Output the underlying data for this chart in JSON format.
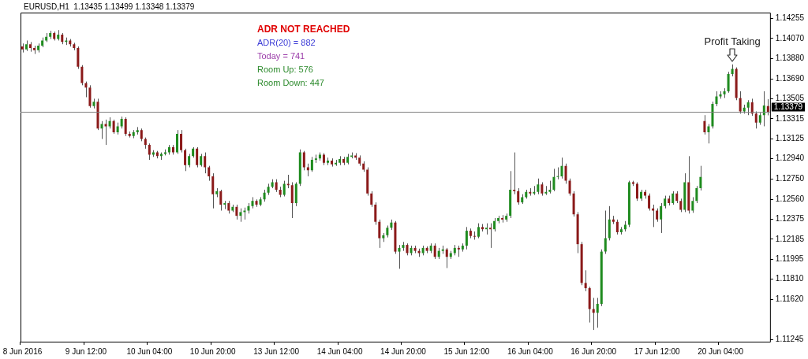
{
  "chart_data": {
    "type": "candlestick",
    "title": "EURUSD,H1  1.13435 1.13499 1.13348 1.13379",
    "categories": [
      "8 Jun 2016",
      null,
      null,
      null,
      null,
      null,
      null,
      null,
      null,
      null,
      null,
      null,
      null,
      null,
      null,
      null,
      "9 Jun 12:00",
      null,
      null,
      null,
      null,
      null,
      null,
      null,
      null,
      null,
      null,
      null,
      null,
      null,
      null,
      null,
      "10 Jun 04:00",
      null,
      null,
      null,
      null,
      null,
      null,
      null,
      null,
      null,
      null,
      null,
      null,
      null,
      null,
      null,
      "10 Jun 20:00",
      null,
      null,
      null,
      null,
      null,
      null,
      null,
      null,
      null,
      null,
      null,
      null,
      null,
      null,
      null,
      "13 Jun 12:00",
      null,
      null,
      null,
      null,
      null,
      null,
      null,
      null,
      null,
      null,
      null,
      null,
      null,
      null,
      null,
      "14 Jun 04:00",
      null,
      null,
      null,
      null,
      null,
      null,
      null,
      null,
      null,
      null,
      null,
      null,
      null,
      null,
      null,
      "14 Jun 20:00",
      null,
      null,
      null,
      null,
      null,
      null,
      null,
      null,
      null,
      null,
      null,
      null,
      null,
      null,
      null,
      "15 Jun 12:00",
      null,
      null,
      null,
      null,
      null,
      null,
      null,
      null,
      null,
      null,
      null,
      null,
      null,
      null,
      null,
      "16 Jun 04:00",
      null,
      null,
      null,
      null,
      null,
      null,
      null,
      null,
      null,
      null,
      null,
      null,
      null,
      null,
      null,
      "16 Jun 20:00",
      null,
      null,
      null,
      null,
      null,
      null,
      null,
      null,
      null,
      null,
      null,
      null,
      null,
      null,
      null,
      "17 Jun 12:00",
      null,
      null,
      null,
      null,
      null,
      null,
      null,
      null,
      null,
      null,
      null,
      null,
      null,
      null,
      null,
      "20 Jun 04:00",
      null,
      null,
      null,
      null,
      null,
      null,
      null,
      null,
      null,
      null,
      null,
      null
    ],
    "ohlc": [
      [
        1.13994,
        1.14022,
        1.13938,
        1.13966
      ],
      [
        1.13966,
        1.1405,
        1.13952,
        1.14015
      ],
      [
        1.14015,
        1.14036,
        1.13945,
        1.1398
      ],
      [
        1.1398,
        1.14001,
        1.13924,
        1.13959
      ],
      [
        1.13959,
        1.14022,
        1.13938,
        1.14001
      ],
      [
        1.14001,
        1.14078,
        1.13987,
        1.1405
      ],
      [
        1.1405,
        1.1412,
        1.14036,
        1.14085
      ],
      [
        1.14085,
        1.14141,
        1.14064,
        1.1412
      ],
      [
        1.1412,
        1.14134,
        1.1405,
        1.14064
      ],
      [
        1.14064,
        1.14148,
        1.1405,
        1.14106
      ],
      [
        1.14106,
        1.1412,
        1.14015,
        1.14036
      ],
      [
        1.14036,
        1.14078,
        1.14008,
        1.1405
      ],
      [
        1.1405,
        1.14064,
        1.13994,
        1.14015
      ],
      [
        1.14015,
        1.14029,
        1.13959,
        1.1398
      ],
      [
        1.1398,
        1.13994,
        1.13784,
        1.13805
      ],
      [
        1.13805,
        1.13819,
        1.1363,
        1.13651
      ],
      [
        1.13651,
        1.13665,
        1.13518,
        1.13609
      ],
      [
        1.13609,
        1.1363,
        1.1342,
        1.13434
      ],
      [
        1.13434,
        1.13504,
        1.13413,
        1.13476
      ],
      [
        1.13476,
        1.13504,
        1.1321,
        1.13224
      ],
      [
        1.13224,
        1.13294,
        1.13126,
        1.13266
      ],
      [
        1.13266,
        1.13308,
        1.1307,
        1.13245
      ],
      [
        1.13245,
        1.13329,
        1.13224,
        1.13294
      ],
      [
        1.13294,
        1.13308,
        1.13175,
        1.13189
      ],
      [
        1.13189,
        1.1328,
        1.13168,
        1.13245
      ],
      [
        1.13245,
        1.13336,
        1.13224,
        1.13315
      ],
      [
        1.13315,
        1.13329,
        1.13154,
        1.13175
      ],
      [
        1.13175,
        1.13196,
        1.1314,
        1.13154
      ],
      [
        1.13154,
        1.1321,
        1.13133,
        1.13189
      ],
      [
        1.13189,
        1.13238,
        1.13168,
        1.1321
      ],
      [
        1.1321,
        1.13224,
        1.13105,
        1.13126
      ],
      [
        1.13126,
        1.1314,
        1.13035,
        1.1307
      ],
      [
        1.1307,
        1.13084,
        1.1293,
        1.12979
      ],
      [
        1.12979,
        1.13021,
        1.12958,
        1.13
      ],
      [
        1.13,
        1.13014,
        1.12944,
        1.12965
      ],
      [
        1.12965,
        1.13,
        1.1293,
        1.12986
      ],
      [
        1.12986,
        1.13028,
        1.12972,
        1.13
      ],
      [
        1.13,
        1.1307,
        1.12979,
        1.13049
      ],
      [
        1.13049,
        1.1307,
        1.12979,
        1.13
      ],
      [
        1.13,
        1.1321,
        1.12986,
        1.13175
      ],
      [
        1.13175,
        1.1321,
        1.13,
        1.13021
      ],
      [
        1.13021,
        1.13035,
        1.12825,
        1.12881
      ],
      [
        1.12881,
        1.12986,
        1.1286,
        1.12965
      ],
      [
        1.12965,
        1.13049,
        1.12951,
        1.13035
      ],
      [
        1.13035,
        1.13049,
        1.1286,
        1.12881
      ],
      [
        1.12881,
        1.12986,
        1.12867,
        1.12965
      ],
      [
        1.12965,
        1.13,
        1.12804,
        1.1286
      ],
      [
        1.1286,
        1.12874,
        1.12734,
        1.12776
      ],
      [
        1.12776,
        1.12804,
        1.12475,
        1.12608
      ],
      [
        1.12608,
        1.12664,
        1.1258,
        1.12636
      ],
      [
        1.12636,
        1.1265,
        1.12454,
        1.1251
      ],
      [
        1.1251,
        1.12545,
        1.12468,
        1.12524
      ],
      [
        1.12524,
        1.12545,
        1.12426,
        1.12454
      ],
      [
        1.12454,
        1.1251,
        1.1244,
        1.12489
      ],
      [
        1.12489,
        1.1251,
        1.1237,
        1.12405
      ],
      [
        1.12405,
        1.12475,
        1.12349,
        1.1244
      ],
      [
        1.1244,
        1.12482,
        1.1237,
        1.12454
      ],
      [
        1.12454,
        1.12524,
        1.12426,
        1.12496
      ],
      [
        1.12496,
        1.1258,
        1.12475,
        1.12545
      ],
      [
        1.12545,
        1.12559,
        1.12489,
        1.1251
      ],
      [
        1.1251,
        1.1258,
        1.12496,
        1.12559
      ],
      [
        1.12559,
        1.1265,
        1.12538,
        1.12622
      ],
      [
        1.12622,
        1.12706,
        1.12601,
        1.12678
      ],
      [
        1.12678,
        1.12748,
        1.12664,
        1.1272
      ],
      [
        1.1272,
        1.12748,
        1.12629,
        1.1265
      ],
      [
        1.1265,
        1.12678,
        1.1258,
        1.12601
      ],
      [
        1.12601,
        1.12734,
        1.12587,
        1.12706
      ],
      [
        1.12706,
        1.1279,
        1.12664,
        1.12692
      ],
      [
        1.12692,
        1.1272,
        1.12384,
        1.12524
      ],
      [
        1.12524,
        1.1272,
        1.12496,
        1.12706
      ],
      [
        1.12706,
        1.13028,
        1.12685,
        1.13
      ],
      [
        1.13,
        1.13014,
        1.12832,
        1.1286
      ],
      [
        1.1286,
        1.12895,
        1.12776,
        1.12832
      ],
      [
        1.12832,
        1.12958,
        1.12818,
        1.1293
      ],
      [
        1.1293,
        1.12979,
        1.12902,
        1.12944
      ],
      [
        1.12944,
        1.13,
        1.12923,
        1.12979
      ],
      [
        1.12979,
        1.12993,
        1.12881,
        1.12902
      ],
      [
        1.12902,
        1.12951,
        1.12881,
        1.12923
      ],
      [
        1.12923,
        1.12944,
        1.12867,
        1.12888
      ],
      [
        1.12888,
        1.1293,
        1.12874,
        1.12902
      ],
      [
        1.12902,
        1.12965,
        1.12881,
        1.12937
      ],
      [
        1.12937,
        1.12958,
        1.12881,
        1.12902
      ],
      [
        1.12902,
        1.12986,
        1.12888,
        1.12958
      ],
      [
        1.12958,
        1.13,
        1.12944,
        1.12972
      ],
      [
        1.12972,
        1.12993,
        1.1293,
        1.12951
      ],
      [
        1.12951,
        1.12972,
        1.12874,
        1.12895
      ],
      [
        1.12895,
        1.12916,
        1.12818,
        1.12839
      ],
      [
        1.12839,
        1.1286,
        1.12594,
        1.12615
      ],
      [
        1.12615,
        1.12636,
        1.12489,
        1.1251
      ],
      [
        1.1251,
        1.12531,
        1.12321,
        1.12349
      ],
      [
        1.12349,
        1.1237,
        1.12104,
        1.12195
      ],
      [
        1.12195,
        1.12244,
        1.1216,
        1.12223
      ],
      [
        1.12223,
        1.12314,
        1.12202,
        1.12293
      ],
      [
        1.12293,
        1.1237,
        1.12272,
        1.12342
      ],
      [
        1.12342,
        1.12356,
        1.12048,
        1.12069
      ],
      [
        1.12069,
        1.12132,
        1.11908,
        1.12104
      ],
      [
        1.12104,
        1.1216,
        1.12076,
        1.12132
      ],
      [
        1.12132,
        1.12146,
        1.12034,
        1.12055
      ],
      [
        1.12055,
        1.12125,
        1.12034,
        1.12104
      ],
      [
        1.12104,
        1.12125,
        1.12055,
        1.12076
      ],
      [
        1.12076,
        1.12097,
        1.1202,
        1.12055
      ],
      [
        1.12055,
        1.12125,
        1.12034,
        1.12104
      ],
      [
        1.12104,
        1.12118,
        1.12055,
        1.12076
      ],
      [
        1.12076,
        1.12146,
        1.12055,
        1.12125
      ],
      [
        1.12125,
        1.12146,
        1.12,
        1.1202
      ],
      [
        1.1202,
        1.12104,
        1.12,
        1.12076
      ],
      [
        1.12076,
        1.12125,
        1.12048,
        1.1209
      ],
      [
        1.1209,
        1.12104,
        1.11915,
        1.1202
      ],
      [
        1.1202,
        1.12076,
        1.12,
        1.12055
      ],
      [
        1.12055,
        1.12132,
        1.12034,
        1.12104
      ],
      [
        1.12104,
        1.12125,
        1.1202,
        1.1209
      ],
      [
        1.1209,
        1.12146,
        1.12069,
        1.12125
      ],
      [
        1.12125,
        1.123,
        1.1209,
        1.12265
      ],
      [
        1.12265,
        1.12286,
        1.12195,
        1.12216
      ],
      [
        1.12216,
        1.12258,
        1.12181,
        1.12209
      ],
      [
        1.12209,
        1.12335,
        1.12195,
        1.123
      ],
      [
        1.123,
        1.12328,
        1.12258,
        1.12279
      ],
      [
        1.12279,
        1.12335,
        1.1223,
        1.12293
      ],
      [
        1.12293,
        1.12335,
        1.12104,
        1.12279
      ],
      [
        1.12279,
        1.12384,
        1.12258,
        1.12356
      ],
      [
        1.12356,
        1.12405,
        1.12335,
        1.12384
      ],
      [
        1.12384,
        1.12412,
        1.12342,
        1.1237
      ],
      [
        1.1237,
        1.12426,
        1.12349,
        1.12405
      ],
      [
        1.12405,
        1.12825,
        1.12384,
        1.1265
      ],
      [
        1.1265,
        1.13,
        1.12608,
        1.12636
      ],
      [
        1.12636,
        1.12664,
        1.1251,
        1.12531
      ],
      [
        1.12531,
        1.12608,
        1.12517,
        1.1258
      ],
      [
        1.1258,
        1.1265,
        1.12566,
        1.12629
      ],
      [
        1.12629,
        1.12664,
        1.12594,
        1.12615
      ],
      [
        1.12615,
        1.12685,
        1.12601,
        1.12629
      ],
      [
        1.12629,
        1.12755,
        1.12608,
        1.12699
      ],
      [
        1.12699,
        1.1272,
        1.12594,
        1.12615
      ],
      [
        1.12615,
        1.12685,
        1.12601,
        1.12629
      ],
      [
        1.12629,
        1.12734,
        1.12615,
        1.1265
      ],
      [
        1.1265,
        1.12846,
        1.12636,
        1.12769
      ],
      [
        1.12769,
        1.1286,
        1.12748,
        1.12776
      ],
      [
        1.12776,
        1.12951,
        1.12755,
        1.12874
      ],
      [
        1.12874,
        1.12895,
        1.12706,
        1.12734
      ],
      [
        1.12734,
        1.12755,
        1.12594,
        1.12615
      ],
      [
        1.12615,
        1.12636,
        1.12398,
        1.12419
      ],
      [
        1.12419,
        1.1244,
        1.12055,
        1.12139
      ],
      [
        1.12139,
        1.1216,
        1.11754,
        1.11775
      ],
      [
        1.11775,
        1.11894,
        1.11698,
        1.11726
      ],
      [
        1.11726,
        1.1174,
        1.11404,
        1.1153
      ],
      [
        1.1153,
        1.11635,
        1.11334,
        1.11495
      ],
      [
        1.11495,
        1.11635,
        1.11355,
        1.11579
      ],
      [
        1.11579,
        1.1209,
        1.11558,
        1.12069
      ],
      [
        1.12069,
        1.12454,
        1.12048,
        1.12195
      ],
      [
        1.12195,
        1.12496,
        1.12174,
        1.1237
      ],
      [
        1.1237,
        1.12405,
        1.12328,
        1.12349
      ],
      [
        1.12349,
        1.1237,
        1.1223,
        1.12251
      ],
      [
        1.12251,
        1.123,
        1.1223,
        1.12279
      ],
      [
        1.12279,
        1.12356,
        1.12258,
        1.12321
      ],
      [
        1.12321,
        1.12734,
        1.123,
        1.1272
      ],
      [
        1.1272,
        1.12734,
        1.12685,
        1.12706
      ],
      [
        1.12706,
        1.1272,
        1.12545,
        1.12566
      ],
      [
        1.12566,
        1.1265,
        1.12545,
        1.12629
      ],
      [
        1.12629,
        1.1265,
        1.12566,
        1.12594
      ],
      [
        1.12594,
        1.12615,
        1.12454,
        1.12475
      ],
      [
        1.12475,
        1.1251,
        1.123,
        1.12454
      ],
      [
        1.12454,
        1.12475,
        1.12349,
        1.1237
      ],
      [
        1.1237,
        1.12524,
        1.12244,
        1.12496
      ],
      [
        1.12496,
        1.12594,
        1.12475,
        1.12566
      ],
      [
        1.12566,
        1.12594,
        1.12503,
        1.12524
      ],
      [
        1.12524,
        1.12636,
        1.1251,
        1.12615
      ],
      [
        1.12615,
        1.12636,
        1.12524,
        1.12545
      ],
      [
        1.12545,
        1.12566,
        1.1244,
        1.12461
      ],
      [
        1.12461,
        1.12804,
        1.1244,
        1.1272
      ],
      [
        1.1272,
        1.12965,
        1.12426,
        1.12454
      ],
      [
        1.12454,
        1.1258,
        1.12433,
        1.12545
      ],
      [
        1.12545,
        1.12685,
        1.12524,
        1.12664
      ],
      [
        1.12664,
        1.12874,
        1.12643,
        1.12769
      ],
      [
        1.13294,
        1.1335,
        1.13168,
        1.13189
      ],
      [
        1.13189,
        1.13266,
        1.13084,
        1.13245
      ],
      [
        1.13245,
        1.13476,
        1.13224,
        1.13455
      ],
      [
        1.13455,
        1.13574,
        1.13434,
        1.13525
      ],
      [
        1.13525,
        1.13574,
        1.13504,
        1.13546
      ],
      [
        1.13546,
        1.13602,
        1.13511,
        1.13574
      ],
      [
        1.13574,
        1.13756,
        1.1356,
        1.13735
      ],
      [
        1.13735,
        1.13826,
        1.13714,
        1.13784
      ],
      [
        1.13784,
        1.13798,
        1.1349,
        1.13511
      ],
      [
        1.13511,
        1.13574,
        1.13364,
        1.13385
      ],
      [
        1.13385,
        1.13448,
        1.13364,
        1.1342
      ],
      [
        1.1342,
        1.1349,
        1.1335,
        1.13469
      ],
      [
        1.13469,
        1.13504,
        1.13343,
        1.13364
      ],
      [
        1.13364,
        1.13385,
        1.13224,
        1.1328
      ],
      [
        1.1328,
        1.13371,
        1.13259,
        1.1335
      ],
      [
        1.1335,
        1.13574,
        1.13245,
        1.13441
      ],
      [
        1.13435,
        1.13499,
        1.13348,
        1.13379
      ]
    ],
    "colors": [
      "#8b1a1a",
      "#1f8b1f",
      "#8b1a1a",
      "#8b1a1a",
      "#1f8b1f",
      "#1f8b1f",
      "#1f8b1f",
      "#1f8b1f",
      "#8b1a1a",
      "#1f8b1f",
      "#8b1a1a",
      "#1f8b1f",
      "#8b1a1a",
      "#8b1a1a",
      "#8b1a1a",
      "#8b1a1a",
      "#8b1a1a",
      "#8b1a1a",
      "#1f8b1f",
      "#8b1a1a",
      "#1f8b1f",
      "#8b1a1a",
      "#1f8b1f",
      "#8b1a1a",
      "#1f8b1f",
      "#1f8b1f",
      "#8b1a1a",
      "#8b1a1a",
      "#1f8b1f",
      "#1f8b1f",
      "#8b1a1a",
      "#8b1a1a",
      "#8b1a1a",
      "#1f8b1f",
      "#8b1a1a",
      "#1f8b1f",
      "#1f8b1f",
      "#1f8b1f",
      "#8b1a1a",
      "#1f8b1f",
      "#8b1a1a",
      "#8b1a1a",
      "#1f8b1f",
      "#1f8b1f",
      "#8b1a1a",
      "#1f8b1f",
      "#8b1a1a",
      "#8b1a1a",
      "#8b1a1a",
      "#1f8b1f",
      "#8b1a1a",
      "#1f8b1f",
      "#8b1a1a",
      "#1f8b1f",
      "#8b1a1a",
      "#1f8b1f",
      "#1f8b1f",
      "#1f8b1f",
      "#1f8b1f",
      "#8b1a1a",
      "#1f8b1f",
      "#1f8b1f",
      "#1f8b1f",
      "#1f8b1f",
      "#8b1a1a",
      "#8b1a1a",
      "#1f8b1f",
      "#8b1a1a",
      "#8b1a1a",
      "#1f8b1f",
      "#1f8b1f",
      "#8b1a1a",
      "#8b1a1a",
      "#1f8b1f",
      "#1f8b1f",
      "#1f8b1f",
      "#8b1a1a",
      "#1f8b1f",
      "#8b1a1a",
      "#1f8b1f",
      "#1f8b1f",
      "#8b1a1a",
      "#1f8b1f",
      "#1f8b1f",
      "#8b1a1a",
      "#8b1a1a",
      "#8b1a1a",
      "#8b1a1a",
      "#8b1a1a",
      "#8b1a1a",
      "#8b1a1a",
      "#1f8b1f",
      "#1f8b1f",
      "#1f8b1f",
      "#8b1a1a",
      "#1f8b1f",
      "#1f8b1f",
      "#8b1a1a",
      "#1f8b1f",
      "#8b1a1a",
      "#8b1a1a",
      "#1f8b1f",
      "#8b1a1a",
      "#1f8b1f",
      "#8b1a1a",
      "#1f8b1f",
      "#1f8b1f",
      "#8b1a1a",
      "#1f8b1f",
      "#1f8b1f",
      "#8b1a1a",
      "#1f8b1f",
      "#1f8b1f",
      "#8b1a1a",
      "#8b1a1a",
      "#1f8b1f",
      "#8b1a1a",
      "#1f8b1f",
      "#8b1a1a",
      "#1f8b1f",
      "#1f8b1f",
      "#8b1a1a",
      "#1f8b1f",
      "#1f8b1f",
      "#8b1a1a",
      "#8b1a1a",
      "#1f8b1f",
      "#1f8b1f",
      "#8b1a1a",
      "#1f8b1f",
      "#1f8b1f",
      "#8b1a1a",
      "#1f8b1f",
      "#1f8b1f",
      "#1f8b1f",
      "#1f8b1f",
      "#1f8b1f",
      "#8b1a1a",
      "#8b1a1a",
      "#8b1a1a",
      "#8b1a1a",
      "#8b1a1a",
      "#8b1a1a",
      "#8b1a1a",
      "#8b1a1a",
      "#1f8b1f",
      "#1f8b1f",
      "#1f8b1f",
      "#1f8b1f",
      "#8b1a1a",
      "#8b1a1a",
      "#1f8b1f",
      "#1f8b1f",
      "#1f8b1f",
      "#8b1a1a",
      "#8b1a1a",
      "#1f8b1f",
      "#8b1a1a",
      "#8b1a1a",
      "#8b1a1a",
      "#8b1a1a",
      "#1f8b1f",
      "#1f8b1f",
      "#8b1a1a",
      "#1f8b1f",
      "#8b1a1a",
      "#8b1a1a",
      "#1f8b1f",
      "#8b1a1a",
      "#1f8b1f",
      "#1f8b1f",
      "#1f8b1f",
      "#8b1a1a",
      "#1f8b1f",
      "#1f8b1f",
      "#1f8b1f",
      "#1f8b1f",
      "#1f8b1f",
      "#1f8b1f",
      "#1f8b1f",
      "#8b1a1a",
      "#8b1a1a",
      "#1f8b1f",
      "#1f8b1f",
      "#8b1a1a",
      "#8b1a1a",
      "#1f8b1f",
      "#1f8b1f",
      "#8b1a1a"
    ],
    "ylim": [
      1.11224,
      1.14312
    ],
    "yticks": [
      1.14255,
      {
        "value": 1.1407,
        "label": "1.14070"
      },
      {
        "value": 1.1388,
        "label": "1.13880"
      },
      {
        "value": 1.1369,
        "label": "1.13690"
      },
      1.13505,
      1.13315,
      1.13125,
      {
        "value": 1.1294,
        "label": "1.12940"
      },
      {
        "value": 1.1275,
        "label": "1.12750"
      },
      {
        "value": 1.1256,
        "label": "1.12560"
      },
      1.12375,
      1.12185,
      1.11995,
      {
        "value": 1.1181,
        "label": "1.11810"
      },
      {
        "value": 1.1162,
        "label": "1.11620"
      },
      1.11245
    ],
    "ref_lines": [
      {
        "axis": "y",
        "value": 1.13379,
        "label": "1.13379",
        "color": "#808080"
      }
    ],
    "annotations": [
      "ADR NOT REACHED",
      "ADR(20) = 882",
      "Today = 741",
      "Room Up: 576",
      "Room Down: 447",
      {
        "text": "Profit Taking",
        "y": 1.13826
      }
    ]
  }
}
